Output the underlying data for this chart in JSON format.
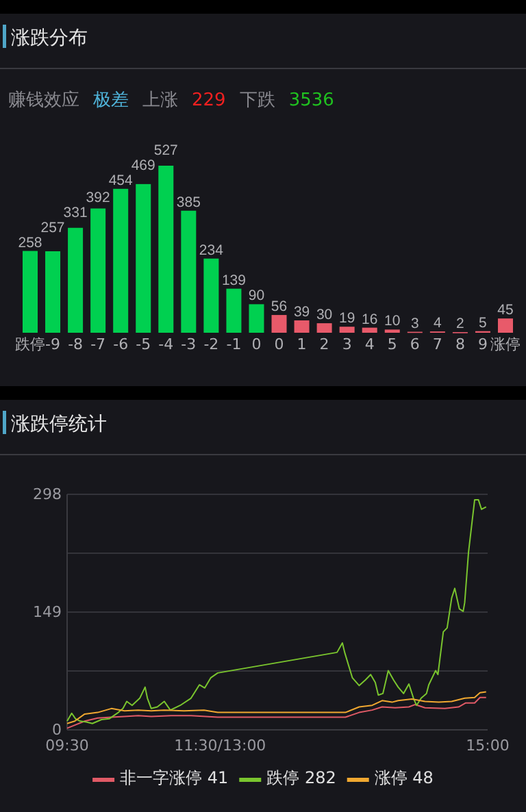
{
  "chart_data": [
    {
      "type": "other",
      "title": "涨跌分布",
      "annotations": [
        "赚钱效应",
        "极差",
        "上涨",
        "229",
        "下跌",
        "3536"
      ],
      "colors": [
        "#8a8a90",
        "#4fb3d9",
        "#8a8a90",
        "#f02020",
        "#8a8a90",
        "#20c020"
      ]
    },
    {
      "type": "bar",
      "categories": [
        "跌停",
        "-9",
        "-8",
        "-7",
        "-6",
        "-5",
        "-4",
        "-3",
        "-2",
        "-1",
        "0",
        "0",
        "1",
        "2",
        "3",
        "4",
        "5",
        "6",
        "7",
        "8",
        "9",
        "涨停"
      ],
      "values": [
        258,
        257,
        331,
        392,
        454,
        469,
        527,
        385,
        234,
        139,
        90,
        56,
        39,
        30,
        19,
        16,
        10,
        3,
        4,
        2,
        5,
        45
      ],
      "colors": [
        "#00d050",
        "#00d050",
        "#00d050",
        "#00d050",
        "#00d050",
        "#00d050",
        "#00d050",
        "#00d050",
        "#00d050",
        "#00d050",
        "#00d050",
        "#e85a6a",
        "#e85a6a",
        "#e85a6a",
        "#e85a6a",
        "#e85a6a",
        "#e85a6a",
        "#e85a6a",
        "#e85a6a",
        "#e85a6a",
        "#e85a6a",
        "#e85a6a"
      ],
      "data_labels": true
    },
    {
      "type": "line",
      "title": "涨跌停统计",
      "xlim": [
        9.5,
        15
      ],
      "xticks": [
        {
          "value": 9.5,
          "label": "09:30"
        },
        {
          "value": 11.5,
          "label": "11:30/13:00"
        },
        {
          "value": 15,
          "label": "15:00"
        }
      ],
      "ylim": [
        0,
        298
      ],
      "yticks": [
        0,
        {
          "value": 74.5,
          "label": null
        },
        149,
        {
          "value": 223.5,
          "label": null
        },
        298
      ],
      "grid": "y",
      "legend": "bottom",
      "series": [
        {
          "name": "非一字涨停 41",
          "color": "#e05a66",
          "x": [
            9.5,
            9.6,
            9.73,
            9.9,
            10.08,
            10.25,
            10.43,
            10.6,
            10.86,
            11.12,
            11.47,
            13.14,
            13.32,
            13.49,
            13.62,
            13.79,
            13.97,
            14.05,
            14.18,
            14.44,
            14.62,
            14.71,
            14.83,
            14.9,
            14.98
          ],
          "values": [
            2,
            6,
            11,
            15,
            16,
            17,
            18,
            17,
            18,
            18,
            16,
            16,
            22,
            25,
            29,
            28,
            29,
            32,
            28,
            27,
            29,
            34,
            34,
            41,
            41
          ]
        },
        {
          "name": "跌停 282",
          "color": "#7ac52e",
          "x": [
            9.5,
            9.56,
            9.61,
            9.67,
            9.75,
            9.83,
            9.95,
            10.05,
            10.17,
            10.23,
            10.28,
            10.35,
            10.45,
            10.52,
            10.55,
            10.6,
            10.68,
            10.77,
            10.85,
            10.98,
            11.12,
            11.23,
            11.3,
            11.38,
            11.47,
            13.03,
            13.1,
            13.13,
            13.23,
            13.32,
            13.4,
            13.47,
            13.53,
            13.57,
            13.63,
            13.7,
            13.77,
            13.83,
            13.9,
            13.97,
            14.03,
            14.07,
            14.13,
            14.2,
            14.23,
            14.32,
            14.35,
            14.42,
            14.47,
            14.53,
            14.57,
            14.63,
            14.68,
            14.7,
            14.75,
            14.83,
            14.88,
            14.92,
            14.98
          ],
          "values": [
            11,
            21,
            14,
            11,
            10,
            8,
            13,
            14,
            22,
            27,
            36,
            31,
            40,
            54,
            40,
            27,
            29,
            36,
            25,
            31,
            40,
            57,
            53,
            66,
            72,
            98,
            110,
            98,
            66,
            56,
            63,
            70,
            60,
            44,
            46,
            75,
            63,
            54,
            46,
            58,
            40,
            31,
            40,
            46,
            57,
            75,
            70,
            124,
            129,
            167,
            179,
            153,
            150,
            161,
            225,
            291,
            291,
            279,
            282
          ]
        },
        {
          "name": "涨停 48",
          "color": "#f0a830",
          "x": [
            9.5,
            9.6,
            9.73,
            9.9,
            10.08,
            10.25,
            10.43,
            10.6,
            10.77,
            11.03,
            11.29,
            11.47,
            13.14,
            13.32,
            13.49,
            13.62,
            13.75,
            13.83,
            14.01,
            14.18,
            14.36,
            14.53,
            14.7,
            14.83,
            14.9,
            14.98
          ],
          "values": [
            8,
            11,
            20,
            22,
            27,
            24,
            25,
            24,
            25,
            24,
            25,
            22,
            22,
            29,
            31,
            37,
            35,
            37,
            39,
            36,
            35,
            36,
            40,
            41,
            47,
            48
          ]
        }
      ]
    }
  ]
}
